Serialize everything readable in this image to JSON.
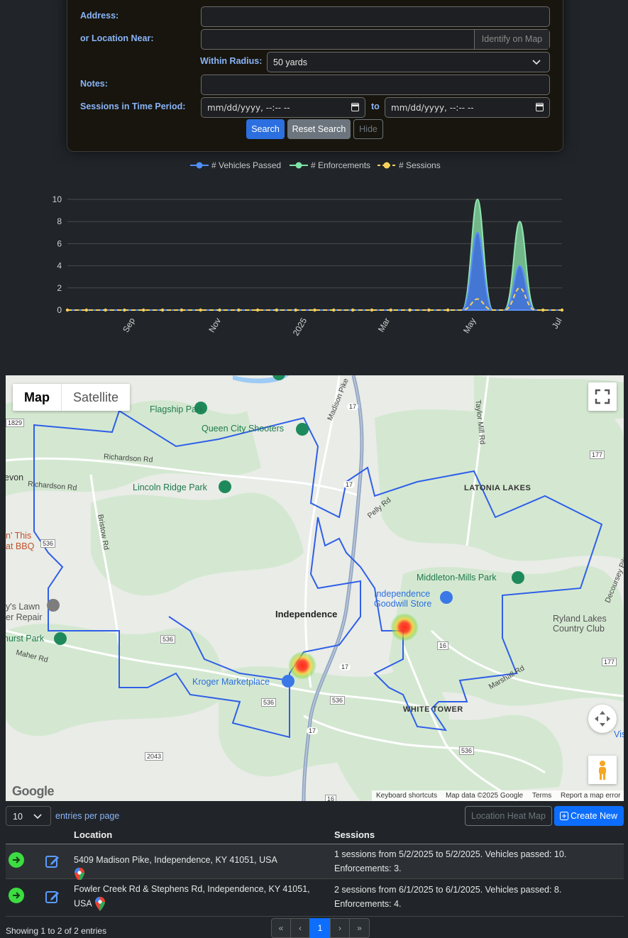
{
  "form": {
    "address_label": "Address:",
    "location_label": "or Location Near:",
    "identify_button": "Identify on Map",
    "radius_label": "Within Radius:",
    "radius_value": "50 yards",
    "notes_label": "Notes:",
    "period_label": "Sessions in Time Period:",
    "date_placeholder": "mm/dd/yyyy, --:-- --",
    "to_label": "to",
    "search_button": "Search",
    "reset_button": "Reset Search",
    "hide_button": "Hide"
  },
  "chart_data": {
    "type": "area",
    "legend": [
      "# Vehicles Passed",
      "# Enforcements",
      "# Sessions"
    ],
    "legend_placement": "top-center",
    "x_tick_labels": [
      "Sep",
      "Nov",
      "2025",
      "Mar",
      "May",
      "Jul"
    ],
    "y_tick_labels": [
      "0",
      "2",
      "4",
      "6",
      "8",
      "10"
    ],
    "ylim": [
      0,
      10
    ],
    "grid": true,
    "x": [
      "2024-07-15",
      "2025-05-02",
      "2025-06-01",
      "2025-07-01"
    ],
    "series": [
      {
        "name": "# Vehicles Passed",
        "color": "#4f8ff7",
        "values": [
          0,
          10,
          8,
          0
        ]
      },
      {
        "name": "# Enforcements",
        "color": "#7fe3a8",
        "values": [
          0,
          3,
          4,
          0
        ]
      },
      {
        "name": "# Sessions",
        "color": "#f7d25a",
        "values": [
          0,
          1,
          2,
          0
        ]
      }
    ]
  },
  "map": {
    "map_tab": "Map",
    "satellite_tab": "Satellite",
    "places": [
      {
        "name": "Flagship Park",
        "kind": "park"
      },
      {
        "name": "Queen City Shooters",
        "kind": "poi"
      },
      {
        "name": "Lincoln Ridge Park",
        "kind": "park"
      },
      {
        "name": "Independence",
        "kind": "town"
      },
      {
        "name": "Kroger Marketplace",
        "kind": "shop"
      },
      {
        "name": "Independence Goodwill Store",
        "kind": "shop"
      },
      {
        "name": "Middleton-Mills Park",
        "kind": "park"
      },
      {
        "name": "LATONIA LAKES",
        "kind": "area"
      },
      {
        "name": "WHITE TOWER",
        "kind": "area"
      },
      {
        "name": "Ryland Lakes Country Club",
        "kind": "poi"
      },
      {
        "name": "hurst Park",
        "kind": "park"
      }
    ],
    "roads": [
      "Madison Pike",
      "Richardson Rd",
      "Bristow Rd",
      "Taylor Mill Rd",
      "Maher Rd",
      "Pelly Rd",
      "Decoursey Pike",
      "Marshall Rd"
    ],
    "road_numbers": [
      "17",
      "17",
      "536",
      "536",
      "536",
      "177",
      "177",
      "16",
      "2043",
      "1829",
      "536",
      "16",
      "17",
      "177"
    ],
    "fragments": [
      "evon",
      "n' This",
      "at BBQ",
      "y's Lawn",
      "er Repair",
      "Vis"
    ],
    "footer": {
      "keyboard": "Keyboard shortcuts",
      "data": "Map data ©2025 Google",
      "terms": "Terms",
      "report": "Report a map error",
      "logo": "Google"
    }
  },
  "table": {
    "page_size": "10",
    "entries_per_page": "entries per page",
    "heatmap_button": "Location Heat Map",
    "create_button": "Create New",
    "columns": [
      "Location",
      "Sessions"
    ],
    "rows": [
      {
        "location": "5409 Madison Pike, Independence, KY 41051, USA",
        "sessions": "1 sessions from 5/2/2025 to 5/2/2025. Vehicles passed: 10. Enforcements: 3."
      },
      {
        "location": "Fowler Creek Rd & Stephens Rd, Independence, KY 41051, USA",
        "sessions": "2 sessions from 6/1/2025 to 6/1/2025. Vehicles passed: 8. Enforcements: 4."
      }
    ],
    "summary": "Showing 1 to 2 of 2 entries",
    "pagination": [
      "«",
      "‹",
      "1",
      "›",
      "»"
    ]
  }
}
